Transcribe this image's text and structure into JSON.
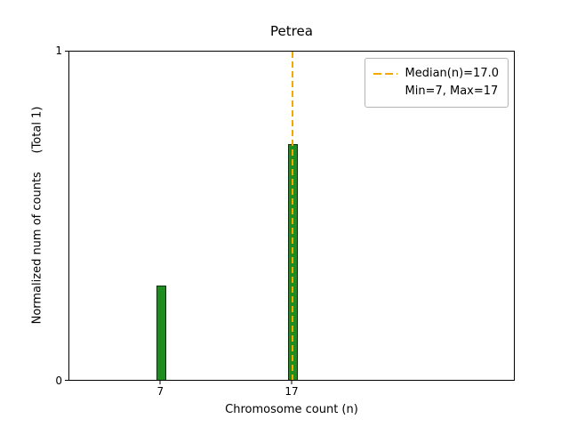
{
  "figure": {
    "title": "Petrea",
    "xlabel": "Chromosome count (n)",
    "ylabel": "Normalized num of counts     (Total 1)",
    "yticks": [
      "0",
      "1"
    ]
  },
  "legend": {
    "entries": [
      {
        "label": "Median(n)=17.0",
        "has_line_sample": true
      },
      {
        "label": "Min=7, Max=17",
        "has_line_sample": false
      }
    ]
  },
  "colors": {
    "bar_fill": "#1e8c1e",
    "bar_edge": "#0c320c",
    "median_line": "#f5a800",
    "axis": "#000000",
    "legend_border": "#b4b4b4"
  },
  "chart_data": {
    "type": "bar",
    "title": "Petrea",
    "xlabel": "Chromosome count (n)",
    "ylabel": "Normalized num of counts (Total 1)",
    "categories": [
      7,
      17
    ],
    "values": [
      0.286,
      0.714
    ],
    "xlim": [
      0,
      34
    ],
    "ylim": [
      0,
      1
    ],
    "yticks": [
      0,
      1
    ],
    "median": 17.0,
    "min": 7,
    "max": 17,
    "legend": [
      "Median(n)=17.0",
      "Min=7, Max=17"
    ],
    "legend_position": "upper right",
    "grid": false,
    "bar_color": "green",
    "median_line_style": "dashed-orange-vertical"
  }
}
